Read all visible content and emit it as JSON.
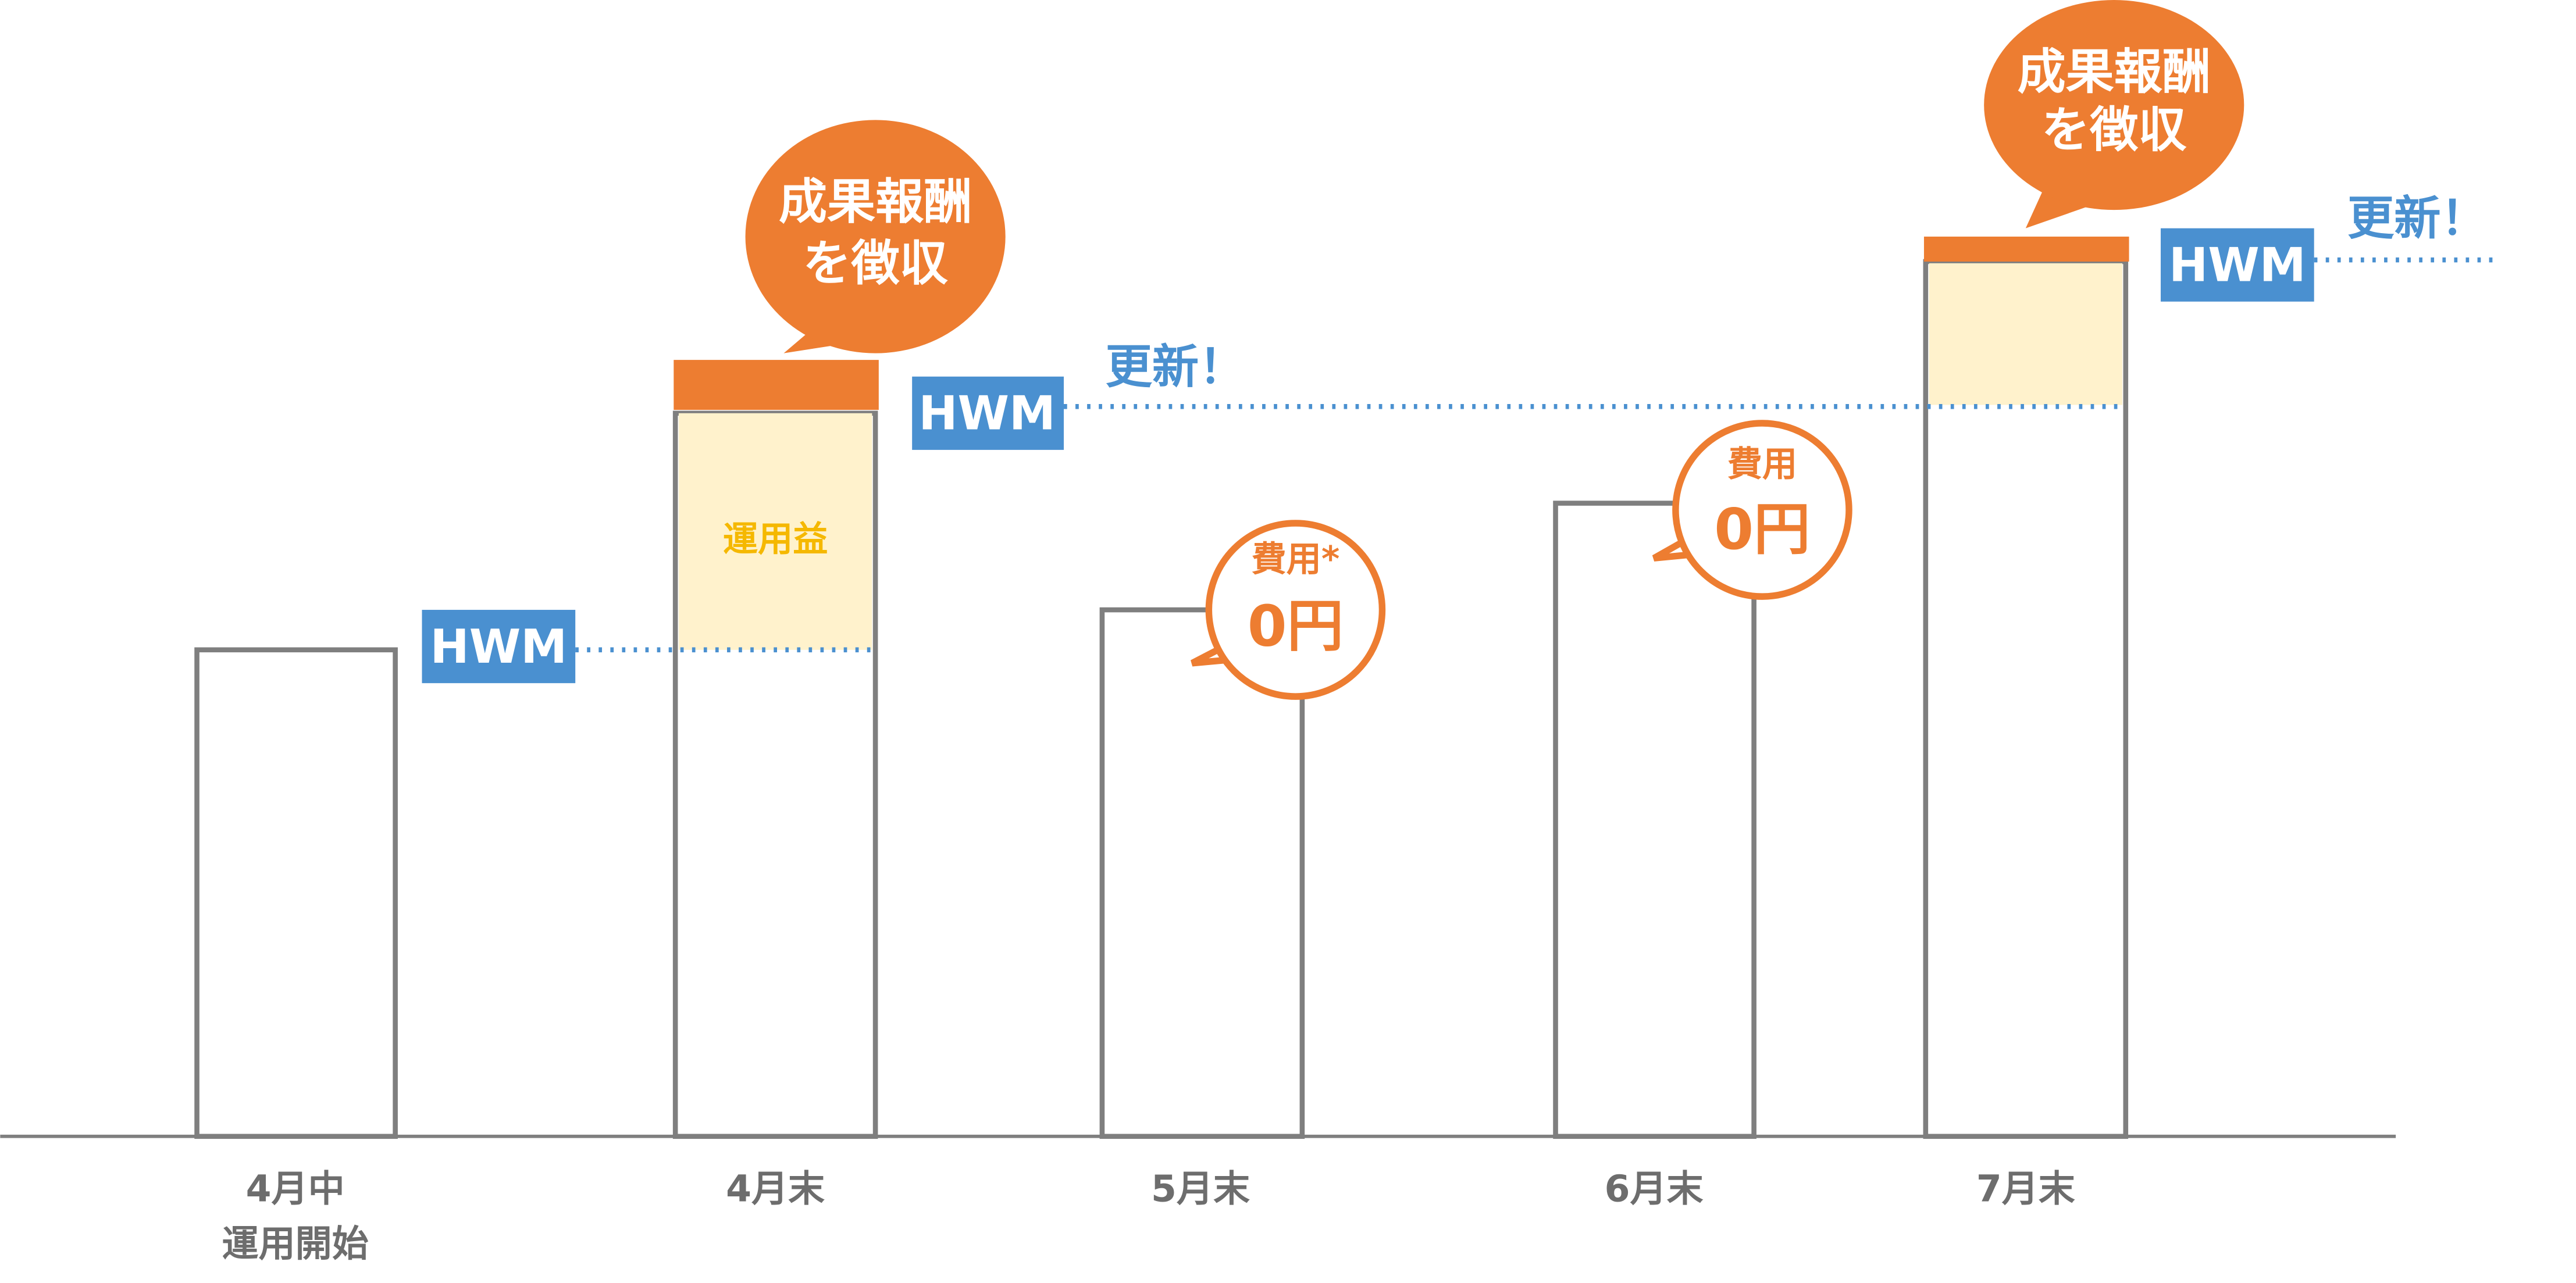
{
  "x_labels": [
    [
      "4月中",
      "運用開始"
    ],
    [
      "4月末"
    ],
    [
      "5月末"
    ],
    [
      "6月末"
    ],
    [
      "7月末"
    ]
  ],
  "hwm_labels": [
    "HWM",
    "HWM",
    "HWM"
  ],
  "profit_label": "運用益",
  "fee_bubbles": [
    [
      "成果報酬",
      "を徴収"
    ],
    [
      "成果報酬",
      "を徴収"
    ]
  ],
  "zero_fee_bubbles": [
    {
      "title": "費用*",
      "amount": "0円"
    },
    {
      "title": "費用",
      "amount": "0円"
    }
  ],
  "updated_labels": [
    "更新！",
    "更新！"
  ]
}
